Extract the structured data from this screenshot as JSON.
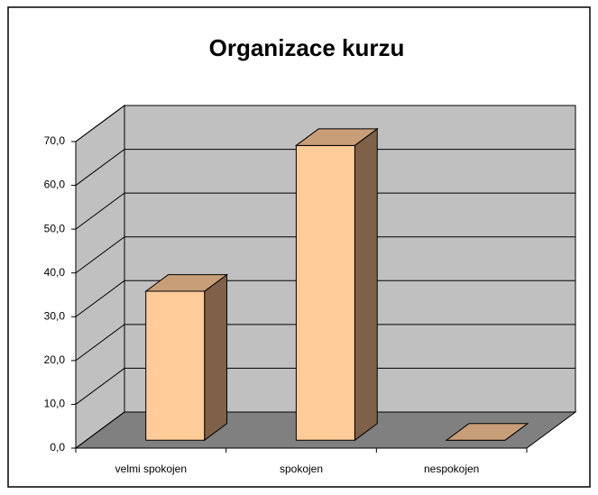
{
  "chart_data": {
    "type": "bar3d",
    "title": "Organizace kurzu",
    "categories": [
      "velmi spokojen",
      "spokojen",
      "nespokojen"
    ],
    "values": [
      34,
      67.3,
      0
    ],
    "color": "#ffcc99",
    "ylim": [
      0,
      70
    ],
    "yticks": [
      {
        "value": 0,
        "label": "0,0"
      },
      {
        "value": 10,
        "label": "10,0"
      },
      {
        "value": 20,
        "label": "20,0"
      },
      {
        "value": 30,
        "label": "30,0"
      },
      {
        "value": 40,
        "label": "40,0"
      },
      {
        "value": 50,
        "label": "50,0"
      },
      {
        "value": 60,
        "label": "60,0"
      },
      {
        "value": 70,
        "label": "70,0"
      }
    ],
    "grid": true
  }
}
